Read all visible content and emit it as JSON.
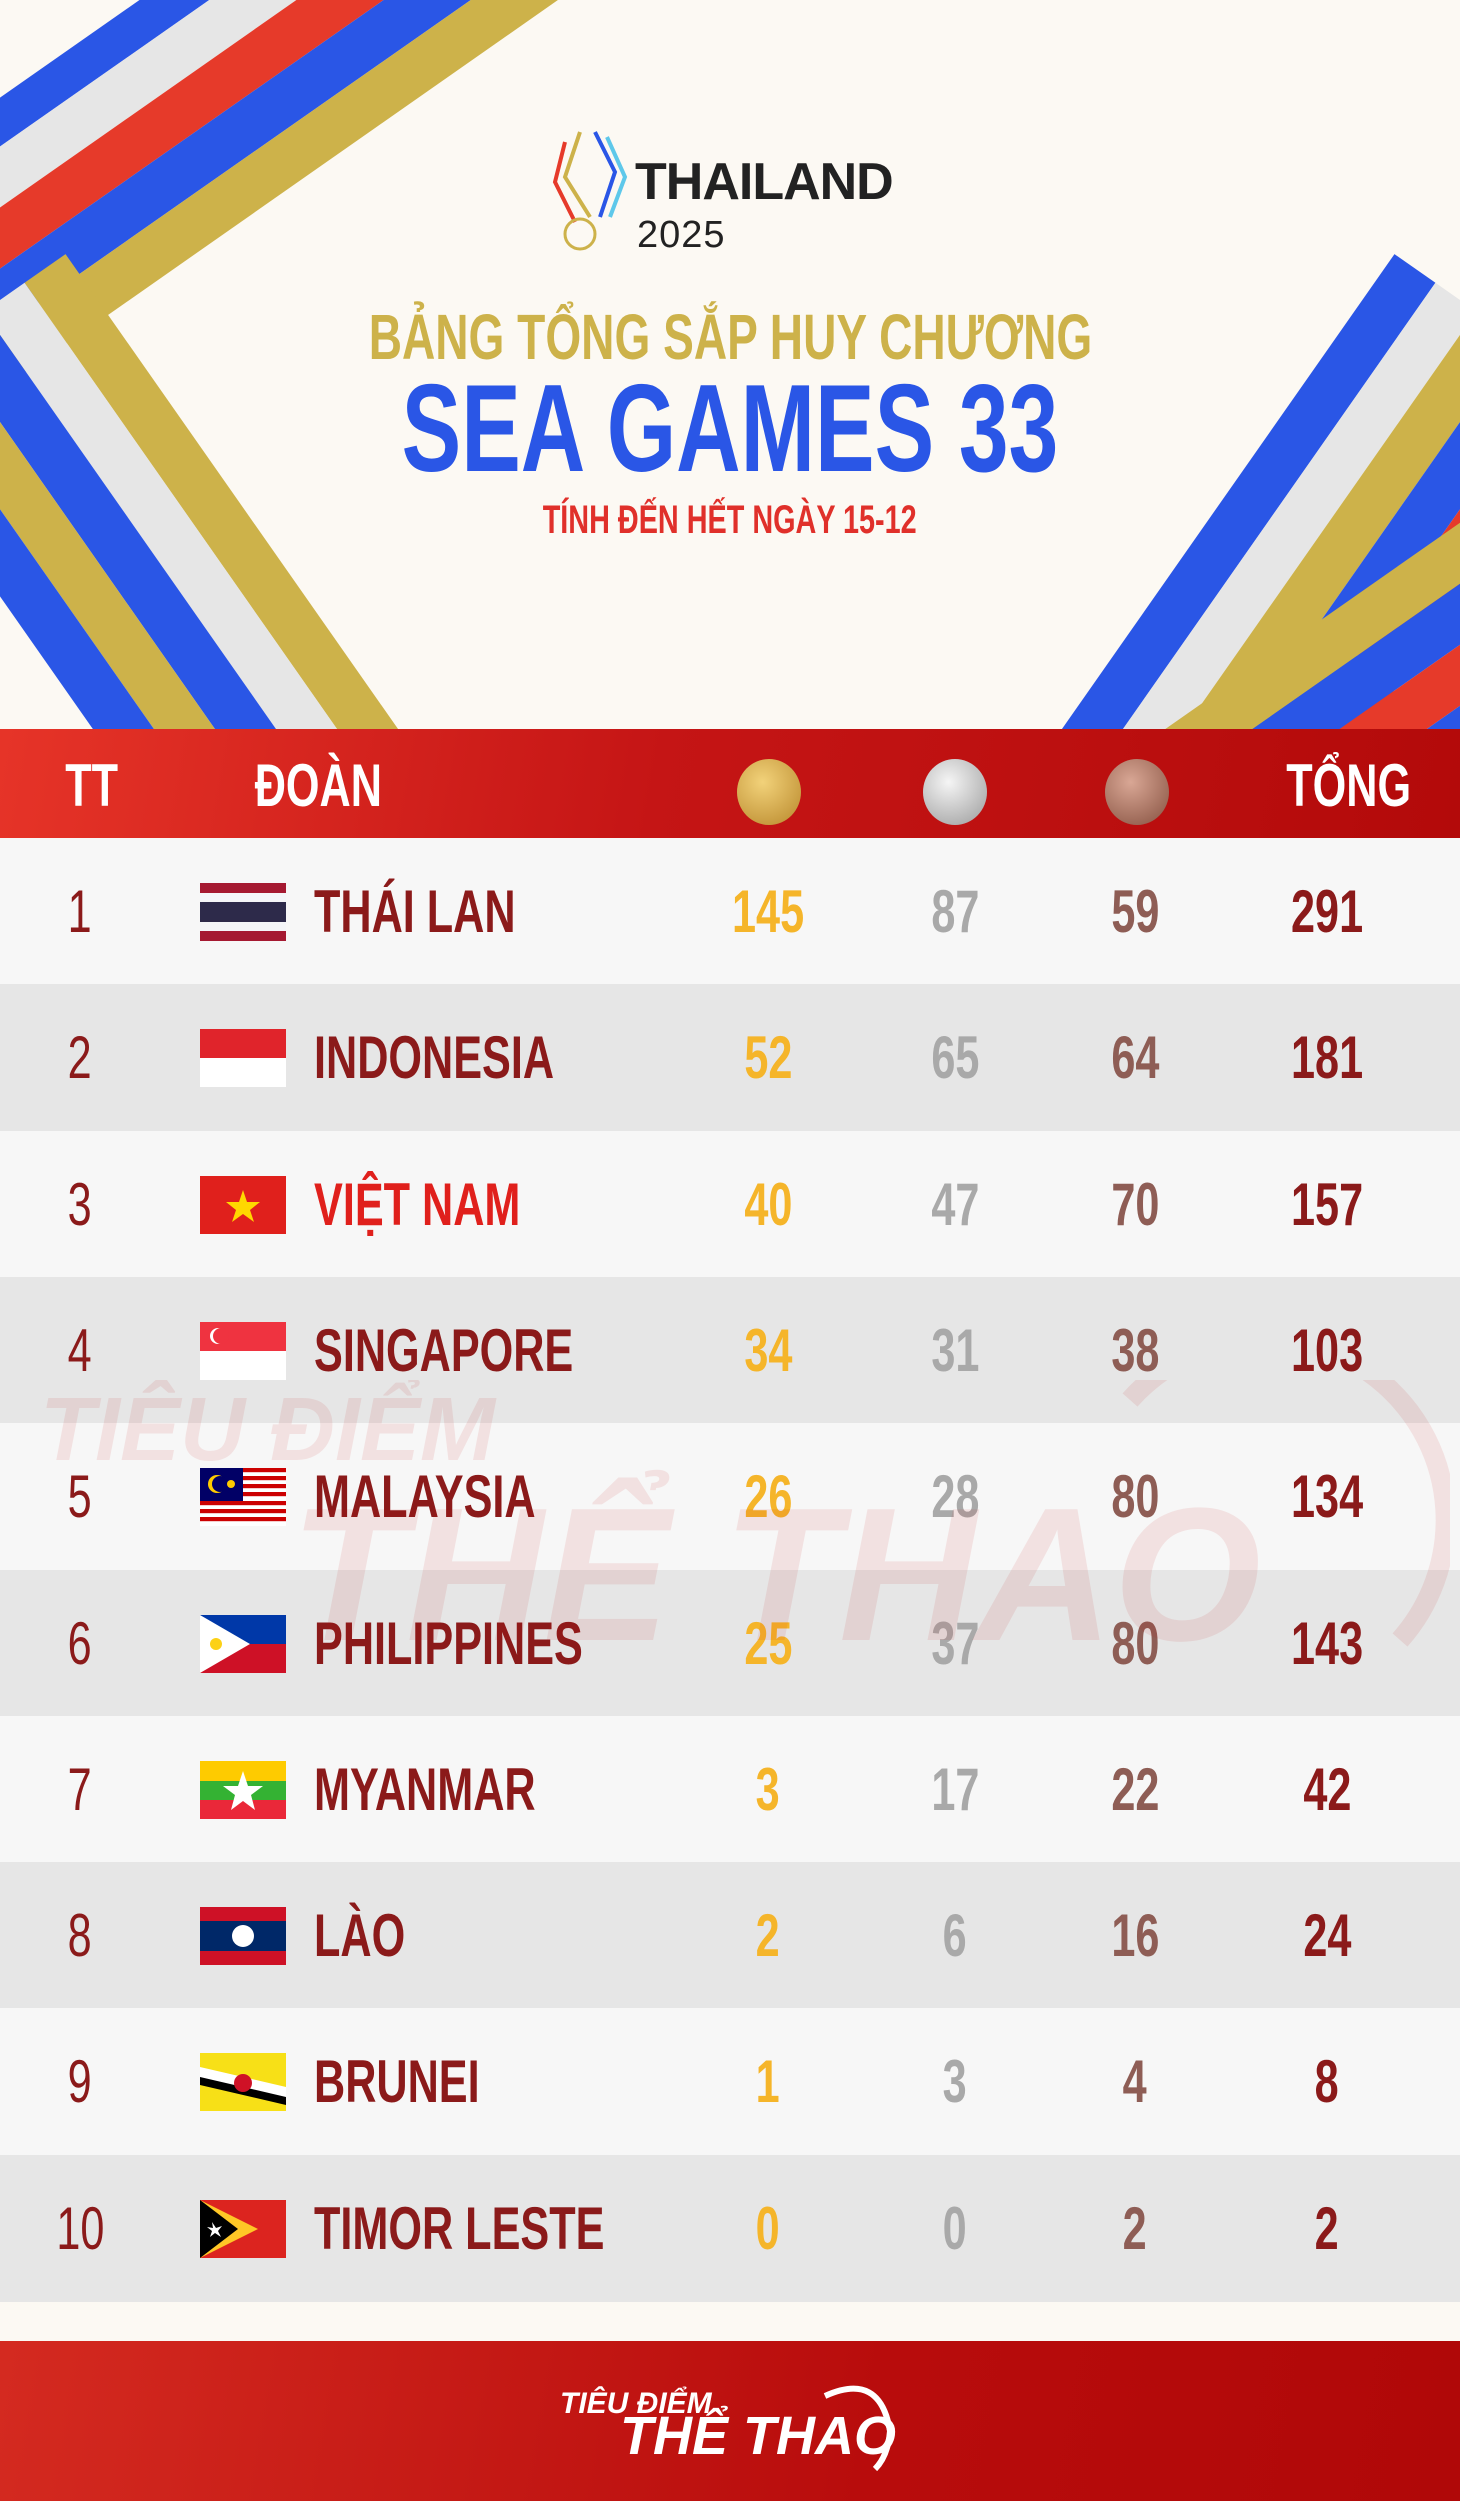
{
  "header": {
    "logo_word": "THAILAND",
    "logo_year": "2025",
    "subtitle": "BẢNG TỔNG SẮP HUY CHƯƠNG",
    "title": "SEA GAMES 33",
    "date_note": "TÍNH ĐẾN HẾT NGÀY 15-12"
  },
  "table": {
    "columns": {
      "rank": "TT",
      "team": "ĐOÀN",
      "gold": "gold-medal-icon",
      "silver": "silver-medal-icon",
      "bronze": "bronze-medal-icon",
      "total": "TỔNG"
    },
    "rows": [
      {
        "rank": "1",
        "team": "THÁI LAN",
        "flag": "thailand",
        "gold": "145",
        "silver": "87",
        "bronze": "59",
        "total": "291"
      },
      {
        "rank": "2",
        "team": "INDONESIA",
        "flag": "indonesia",
        "gold": "52",
        "silver": "65",
        "bronze": "64",
        "total": "181"
      },
      {
        "rank": "3",
        "team": "VIỆT NAM",
        "flag": "vietnam",
        "gold": "40",
        "silver": "47",
        "bronze": "70",
        "total": "157",
        "highlight": true
      },
      {
        "rank": "4",
        "team": "SINGAPORE",
        "flag": "singapore",
        "gold": "34",
        "silver": "31",
        "bronze": "38",
        "total": "103"
      },
      {
        "rank": "5",
        "team": "MALAYSIA",
        "flag": "malaysia",
        "gold": "26",
        "silver": "28",
        "bronze": "80",
        "total": "134"
      },
      {
        "rank": "6",
        "team": "PHILIPPINES",
        "flag": "philippines",
        "gold": "25",
        "silver": "37",
        "bronze": "80",
        "total": "143"
      },
      {
        "rank": "7",
        "team": "MYANMAR",
        "flag": "myanmar",
        "gold": "3",
        "silver": "17",
        "bronze": "22",
        "total": "42"
      },
      {
        "rank": "8",
        "team": "LÀO",
        "flag": "laos",
        "gold": "2",
        "silver": "6",
        "bronze": "16",
        "total": "24"
      },
      {
        "rank": "9",
        "team": "BRUNEI",
        "flag": "brunei",
        "gold": "1",
        "silver": "3",
        "bronze": "4",
        "total": "8"
      },
      {
        "rank": "10",
        "team": "TIMOR LESTE",
        "flag": "timor-leste",
        "gold": "0",
        "silver": "0",
        "bronze": "2",
        "total": "2"
      }
    ]
  },
  "watermark": {
    "line1": "TIÊU ĐIỂM",
    "line2": "THỂ THAO"
  },
  "footer": {
    "brand_line1": "TIÊU ĐIỂM",
    "brand_line2": "THỂ THAO"
  },
  "colors": {
    "gold": "#f5b52a",
    "silver": "#a9a9a9",
    "bronze": "#8e5d55",
    "team": "#8b1a1a",
    "highlight": "#e0201c",
    "title_blue": "#2a56e6",
    "subtitle_gold": "#cdb24a",
    "header_red": "#c51515"
  }
}
